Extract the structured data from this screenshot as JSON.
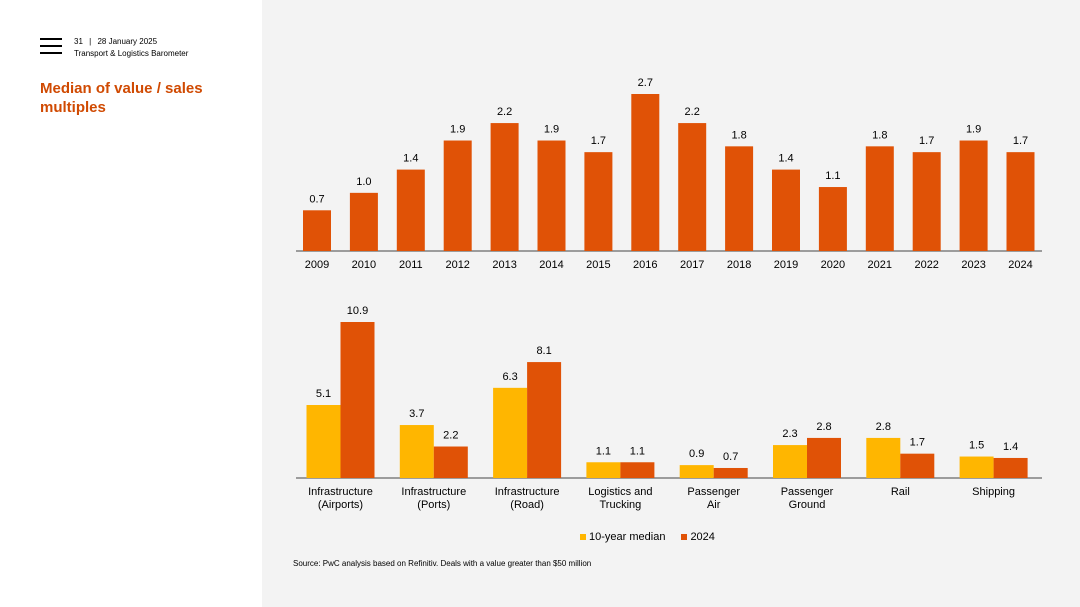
{
  "header": {
    "page_number": "31",
    "separator": "|",
    "date": "28 January 2025",
    "report_name": "Transport & Logistics Barometer",
    "menu_icon": "hamburger-menu-icon"
  },
  "title": "Median of value / sales multiples",
  "colors": {
    "accent": "#d04a02",
    "median": "#ffb600",
    "orange_bar": "#e05206",
    "panel_bg": "#f3f3f3"
  },
  "chart_data": [
    {
      "type": "bar",
      "title": "",
      "categories": [
        "2009",
        "2010",
        "2011",
        "2012",
        "2013",
        "2014",
        "2015",
        "2016",
        "2017",
        "2018",
        "2019",
        "2020",
        "2021",
        "2022",
        "2023",
        "2024"
      ],
      "values": [
        0.7,
        1.0,
        1.4,
        1.9,
        2.2,
        1.9,
        1.7,
        2.7,
        2.2,
        1.8,
        1.4,
        1.1,
        1.8,
        1.7,
        1.9,
        1.7
      ],
      "labels": [
        "0.7",
        "1.0",
        "1.4",
        "1.9",
        "2.2",
        "1.9",
        "1.7",
        "2.7",
        "2.2",
        "1.8",
        "1.4",
        "1.1",
        "1.8",
        "1.7",
        "1.9",
        "1.7"
      ],
      "ylim": [
        0,
        2.7
      ],
      "xlabel": "",
      "ylabel": "",
      "grid": false
    },
    {
      "type": "bar",
      "title": "",
      "categories": [
        [
          "Infrastructure",
          "(Airports)"
        ],
        [
          "Infrastructure",
          "(Ports)"
        ],
        [
          "Infrastructure",
          "(Road)"
        ],
        [
          "Logistics and",
          "Trucking"
        ],
        [
          "Passenger",
          "Air"
        ],
        [
          "Passenger",
          "Ground"
        ],
        [
          "Rail"
        ],
        [
          "Shipping"
        ]
      ],
      "series": [
        {
          "name": "10-year median",
          "values": [
            5.1,
            3.7,
            6.3,
            1.1,
            0.9,
            2.3,
            2.8,
            1.5
          ],
          "labels": [
            "5.1",
            "3.7",
            "6.3",
            "1.1",
            "0.9",
            "2.3",
            "2.8",
            "1.5"
          ]
        },
        {
          "name": "2024",
          "values": [
            10.9,
            2.2,
            8.1,
            1.1,
            0.7,
            2.8,
            1.7,
            1.4
          ],
          "labels": [
            "10.9",
            "2.2",
            "8.1",
            "1.1",
            "0.7",
            "2.8",
            "1.7",
            "1.4"
          ]
        }
      ],
      "ylim": [
        0,
        10.9
      ],
      "legend": "bottom-center",
      "grid": false
    }
  ],
  "legend": {
    "median_label": "10-year median",
    "current_label": "2024"
  },
  "source": "Source: PwC analysis based on Refinitiv. Deals with a value greater than $50 million"
}
